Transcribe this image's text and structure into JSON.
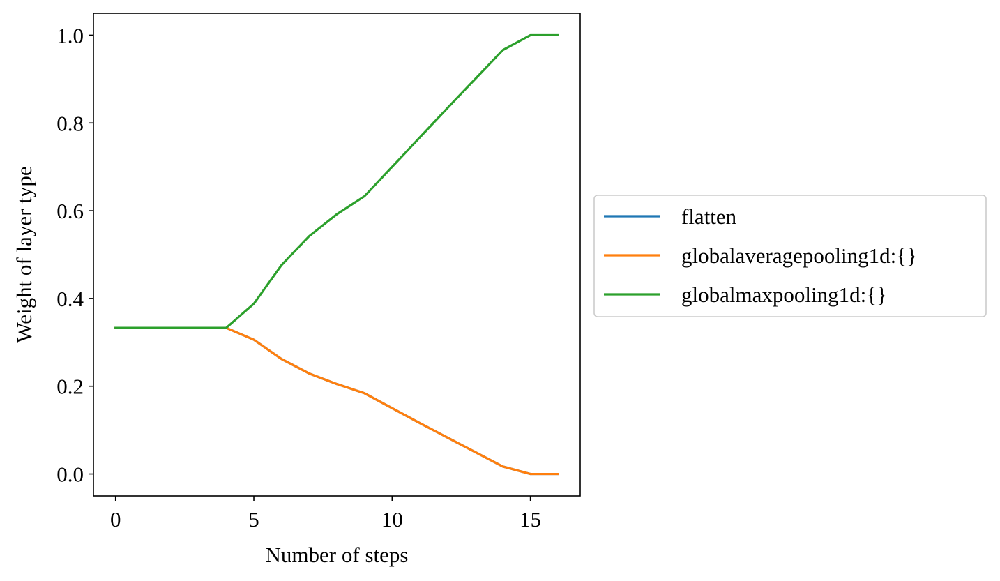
{
  "chart_data": {
    "type": "line",
    "xlabel": "Number of steps",
    "ylabel": "Weight of layer type",
    "xlim": [
      -0.8,
      16.8
    ],
    "ylim": [
      -0.05,
      1.05
    ],
    "xticks": [
      "0",
      "5",
      "10",
      "15"
    ],
    "yticks": [
      "0.0",
      "0.2",
      "0.4",
      "0.6",
      "0.8",
      "1.0"
    ],
    "grid": false,
    "legend_position": "right",
    "x": [
      0,
      1,
      2,
      3,
      4,
      5,
      6,
      7,
      8,
      9,
      10,
      11,
      12,
      13,
      14,
      15,
      16
    ],
    "series": [
      {
        "name": "flatten",
        "color": "#1f77b4",
        "values": [
          0.333,
          0.333,
          0.333,
          0.333,
          0.333,
          0.306,
          0.262,
          0.229,
          0.205,
          0.184,
          0.15,
          0.116,
          0.083,
          0.05,
          0.017,
          0.0,
          0.0
        ]
      },
      {
        "name": "globalaveragepooling1d:{}",
        "color": "#ff7f0e",
        "values": [
          0.333,
          0.333,
          0.333,
          0.333,
          0.333,
          0.306,
          0.262,
          0.229,
          0.205,
          0.184,
          0.15,
          0.116,
          0.083,
          0.05,
          0.017,
          0.0,
          0.0
        ]
      },
      {
        "name": "globalmaxpooling1d:{}",
        "color": "#2ca02c",
        "values": [
          0.333,
          0.333,
          0.333,
          0.333,
          0.333,
          0.388,
          0.476,
          0.542,
          0.592,
          0.633,
          0.7,
          0.767,
          0.834,
          0.9,
          0.966,
          1.0,
          1.0
        ]
      }
    ]
  }
}
